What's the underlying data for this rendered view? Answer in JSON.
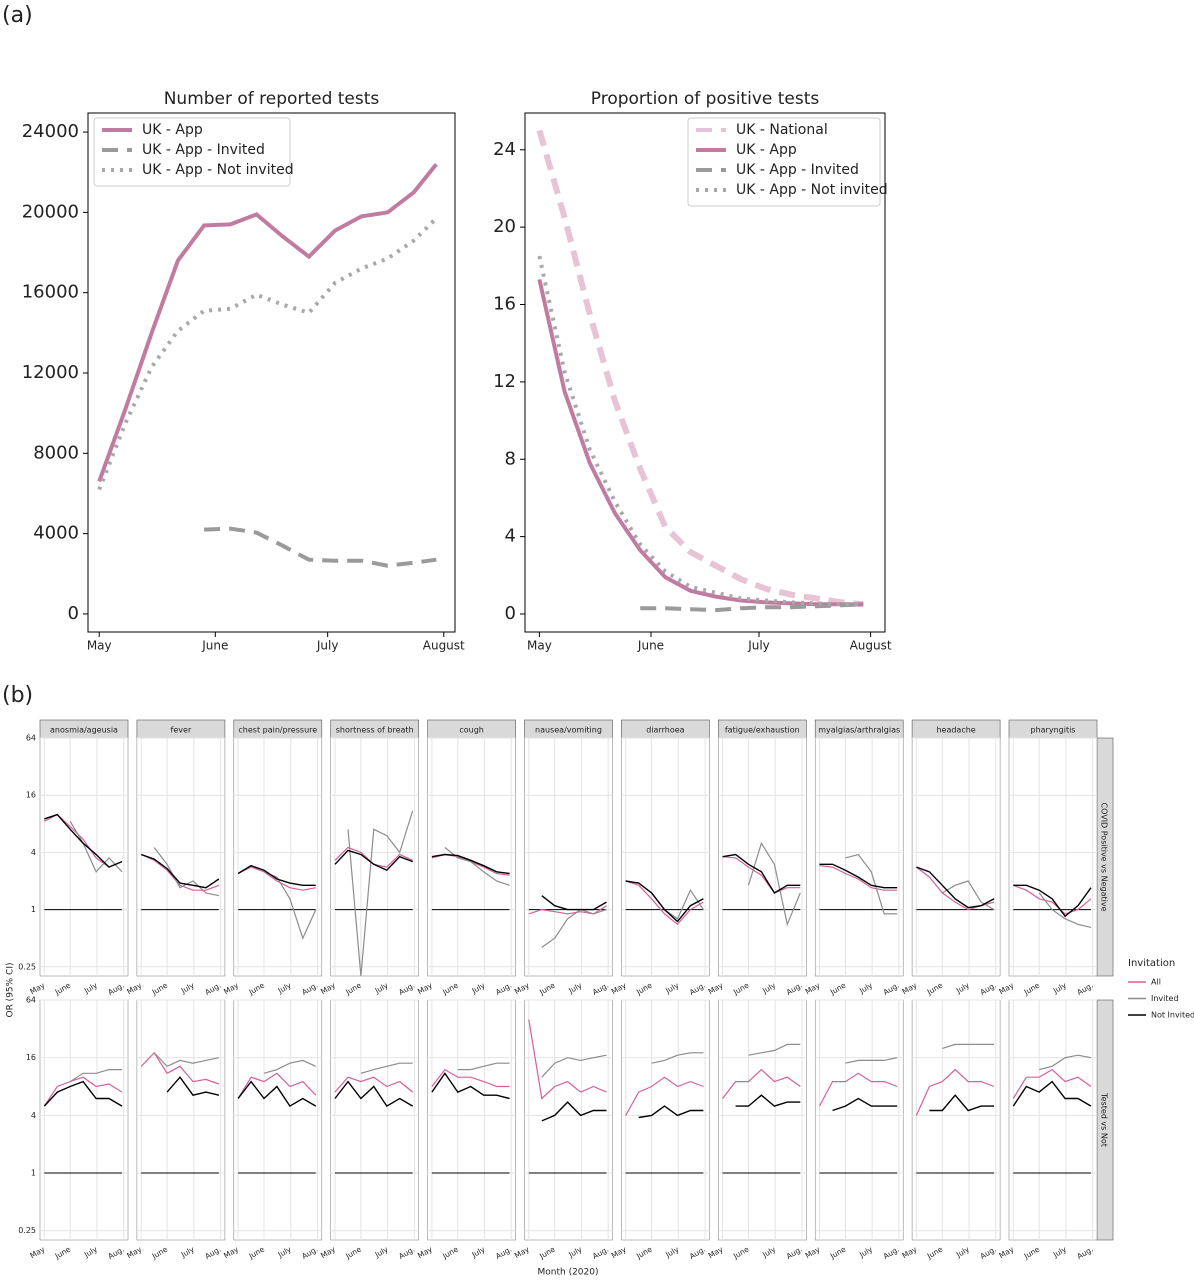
{
  "panel_labels": [
    "(a)",
    "(b)"
  ],
  "chart_data": [
    {
      "type": "line",
      "title": "Number of reported tests",
      "x": [
        0,
        7,
        14,
        21,
        28,
        35,
        42,
        49,
        56,
        63,
        70,
        77,
        84,
        90
      ],
      "xlim": [
        -3,
        95
      ],
      "xticks": [
        {
          "value": 0,
          "label": "May"
        },
        {
          "value": 31,
          "label": "June"
        },
        {
          "value": 61,
          "label": "July"
        },
        {
          "value": 92,
          "label": "August"
        }
      ],
      "ylim": [
        -900,
        24950
      ],
      "yticks": [
        0,
        4000,
        8000,
        12000,
        16000,
        20000,
        24000
      ],
      "legend": "upper left",
      "series": [
        {
          "name": "UK - App",
          "color": "#c27ba0",
          "linestyle": "solid",
          "values": [
            6600,
            10200,
            14000,
            17600,
            19350,
            19400,
            19900,
            18800,
            17800,
            19100,
            19800,
            20000,
            21000,
            22400
          ]
        },
        {
          "name": "UK - App - Invited",
          "color": "#9a9a9a",
          "linestyle": "dashed",
          "values": [
            null,
            null,
            null,
            null,
            4200,
            4250,
            4050,
            3400,
            2700,
            2650,
            2650,
            2400,
            2550,
            2700
          ]
        },
        {
          "name": "UK - App - Not invited",
          "color": "#a8a8a8",
          "linestyle": "dotted",
          "values": [
            6200,
            9500,
            12300,
            14100,
            15100,
            15200,
            15900,
            15400,
            15000,
            16500,
            17200,
            17700,
            18600,
            19700
          ]
        }
      ]
    },
    {
      "type": "line",
      "title": "Proportion of positive tests",
      "x": [
        0,
        7,
        14,
        21,
        28,
        35,
        42,
        49,
        56,
        63,
        70,
        77,
        84,
        90
      ],
      "xlim": [
        -4,
        96
      ],
      "xticks": [
        {
          "value": 0,
          "label": "May"
        },
        {
          "value": 31,
          "label": "June"
        },
        {
          "value": 61,
          "label": "July"
        },
        {
          "value": 92,
          "label": "August"
        }
      ],
      "ylim": [
        -0.93,
        25.9
      ],
      "yticks": [
        0,
        4,
        8,
        12,
        16,
        20,
        24
      ],
      "legend": "upper right",
      "series": [
        {
          "name": "UK - National",
          "color": "#e8c3d5",
          "linestyle": "dashed",
          "values": [
            25,
            20.5,
            15.5,
            11,
            7.5,
            4.5,
            3.2,
            2.5,
            1.8,
            1.3,
            1.0,
            0.8,
            0.6,
            0.5
          ]
        },
        {
          "name": "UK - App",
          "color": "#c27ba0",
          "linestyle": "solid",
          "values": [
            17.3,
            11.5,
            7.8,
            5.2,
            3.3,
            1.9,
            1.2,
            0.9,
            0.7,
            0.6,
            0.55,
            0.5,
            0.5,
            0.5
          ]
        },
        {
          "name": "UK - App - Invited",
          "color": "#9a9a9a",
          "linestyle": "dashed",
          "values": [
            null,
            null,
            null,
            null,
            0.3,
            0.3,
            0.25,
            0.2,
            0.3,
            0.35,
            0.35,
            0.4,
            0.45,
            0.5
          ]
        },
        {
          "name": "UK - App - Not invited",
          "color": "#a8a8a8",
          "linestyle": "dotted",
          "values": [
            18.5,
            12.5,
            8.5,
            5.8,
            3.6,
            2.2,
            1.4,
            1.1,
            0.8,
            0.7,
            0.6,
            0.55,
            0.5,
            0.5
          ]
        }
      ]
    },
    {
      "type": "facets",
      "yscale": "log",
      "ylabel": "OR (95% CI)",
      "xlabel": "Month (2020)",
      "legend_title": "Invitation",
      "x": [
        0,
        15,
        30,
        45,
        60,
        75,
        90
      ],
      "xlim": [
        -5,
        97
      ],
      "xticks": [
        {
          "value": 0,
          "label": "May"
        },
        {
          "value": 30,
          "label": "June"
        },
        {
          "value": 61,
          "label": "July"
        },
        {
          "value": 92,
          "label": "Aug."
        }
      ],
      "ylim": [
        0.2,
        64
      ],
      "yticks": [
        0.25,
        1,
        4,
        16,
        64
      ],
      "reference": 1,
      "grid": true,
      "columns": [
        "anosmia/ageusia",
        "fever",
        "chest pain/pressure",
        "shortness of breath",
        "cough",
        "nausea/vomiting",
        "diarrhoea",
        "fatigue/exhaustion",
        "myalgias/arthralgias",
        "headache",
        "pharyngitis"
      ],
      "rows": [
        "COVID Positive vs Negative",
        "Tested vs Not"
      ],
      "series": [
        {
          "name": "All",
          "color": "#d6609a"
        },
        {
          "name": "Invited",
          "color": "#8c8c8c"
        },
        {
          "name": "Not Invited",
          "color": "#000000"
        }
      ],
      "panels": [
        {
          "values": [
            [
              8.5,
              10,
              7.5,
              5.5,
              3.5,
              2.8,
              3.2
            ],
            [
              null,
              null,
              8.5,
              5,
              2.5,
              3.5,
              2.5
            ],
            [
              9,
              10,
              7,
              5,
              3.8,
              2.8,
              3.2
            ]
          ]
        },
        {
          "values": [
            [
              3.8,
              3.3,
              2.6,
              1.8,
              1.6,
              1.6,
              1.8
            ],
            [
              null,
              4.5,
              3,
              1.7,
              2,
              1.5,
              1.4
            ],
            [
              3.8,
              3.4,
              2.7,
              1.9,
              1.8,
              1.7,
              2.1
            ]
          ]
        },
        {
          "values": [
            [
              2.4,
              2.8,
              2.5,
              2,
              1.7,
              1.6,
              1.7
            ],
            [
              null,
              null,
              2.5,
              2.2,
              1.3,
              0.5,
              1
            ],
            [
              2.4,
              2.9,
              2.6,
              2.1,
              1.9,
              1.8,
              1.8
            ]
          ]
        },
        {
          "values": [
            [
              3.3,
              4.5,
              4,
              3,
              2.8,
              3.8,
              3.3
            ],
            [
              null,
              7,
              0.2,
              7,
              6,
              4,
              11
            ],
            [
              3,
              4.2,
              3.8,
              3,
              2.6,
              3.6,
              3.2
            ]
          ]
        },
        {
          "values": [
            [
              3.5,
              3.8,
              3.6,
              3.2,
              2.8,
              2.4,
              2.3
            ],
            [
              null,
              4.5,
              3.5,
              3.2,
              2.5,
              2,
              1.8
            ],
            [
              3.6,
              3.8,
              3.7,
              3.3,
              2.9,
              2.5,
              2.4
            ]
          ]
        },
        {
          "values": [
            [
              0.9,
              1,
              0.95,
              0.9,
              0.95,
              0.9,
              1.1
            ],
            [
              null,
              0.4,
              0.5,
              0.8,
              1,
              0.9,
              1
            ],
            [
              null,
              1.4,
              1.1,
              1,
              1,
              1,
              1.2
            ]
          ]
        },
        {
          "values": [
            [
              2,
              1.8,
              1.3,
              0.9,
              0.7,
              1,
              1.2
            ],
            [
              null,
              null,
              1.5,
              1,
              0.8,
              1.6,
              1
            ],
            [
              2,
              1.9,
              1.5,
              1,
              0.75,
              1.1,
              1.3
            ]
          ]
        },
        {
          "values": [
            [
              3.6,
              3.5,
              2.8,
              2.3,
              1.5,
              1.7,
              1.7
            ],
            [
              null,
              null,
              1.8,
              5,
              3,
              0.7,
              1.5
            ],
            [
              3.6,
              3.8,
              3,
              2.5,
              1.5,
              1.8,
              1.8
            ]
          ]
        },
        {
          "values": [
            [
              2.9,
              2.8,
              2.4,
              2.1,
              1.7,
              1.6,
              1.6
            ],
            [
              null,
              null,
              3.5,
              3.8,
              2.5,
              0.9,
              0.9
            ],
            [
              3,
              3,
              2.6,
              2.2,
              1.8,
              1.7,
              1.7
            ]
          ]
        },
        {
          "values": [
            [
              2.8,
              2.2,
              1.5,
              1.2,
              1,
              1.1,
              1.2
            ],
            [
              null,
              null,
              1.5,
              1.8,
              2,
              1.2,
              1
            ],
            [
              2.8,
              2.5,
              1.8,
              1.3,
              1.05,
              1.1,
              1.3
            ]
          ]
        },
        {
          "values": [
            [
              1.8,
              1.6,
              1.3,
              1.2,
              0.9,
              1,
              1.3
            ],
            [
              null,
              null,
              1.5,
              1,
              0.8,
              0.7,
              0.65
            ],
            [
              1.8,
              1.8,
              1.6,
              1.3,
              0.85,
              1.1,
              1.7
            ]
          ]
        },
        {
          "values": [
            [
              5,
              8,
              9,
              10,
              8,
              8.5,
              7
            ],
            [
              null,
              null,
              9,
              11,
              11,
              12,
              12
            ],
            [
              5,
              7,
              8,
              9,
              6,
              6,
              5
            ]
          ]
        },
        {
          "values": [
            [
              13,
              18,
              11,
              13,
              9,
              9.5,
              8.5
            ],
            [
              null,
              18,
              13,
              15,
              14,
              15,
              16
            ],
            [
              null,
              null,
              7,
              10,
              6.5,
              7,
              6.5
            ]
          ]
        },
        {
          "values": [
            [
              6,
              10,
              9,
              11,
              8,
              9,
              6.5
            ],
            [
              null,
              null,
              11,
              12,
              14,
              15,
              13
            ],
            [
              6,
              9,
              6,
              8,
              5,
              6,
              5
            ]
          ]
        },
        {
          "values": [
            [
              7,
              10,
              9,
              10,
              8,
              9,
              7
            ],
            [
              null,
              null,
              11,
              12,
              13,
              14,
              14
            ],
            [
              6,
              9,
              6,
              8,
              5,
              6,
              5
            ]
          ]
        },
        {
          "values": [
            [
              8,
              12,
              10,
              10,
              9,
              8,
              8
            ],
            [
              null,
              null,
              12,
              12,
              13,
              14,
              14
            ],
            [
              7,
              11,
              7,
              8,
              6.5,
              6.5,
              6
            ]
          ]
        },
        {
          "values": [
            [
              40,
              6,
              8,
              9,
              7,
              8,
              7
            ],
            [
              null,
              10,
              14,
              16,
              15,
              16,
              17
            ],
            [
              null,
              3.5,
              4,
              5.5,
              4,
              4.5,
              4.5
            ]
          ]
        },
        {
          "values": [
            [
              4,
              7,
              8,
              10,
              8,
              9,
              8
            ],
            [
              null,
              null,
              14,
              15,
              17,
              18,
              18
            ],
            [
              null,
              3.8,
              4,
              5,
              4,
              4.5,
              4.5
            ]
          ]
        },
        {
          "values": [
            [
              6,
              9,
              9,
              12,
              9,
              10,
              8
            ],
            [
              null,
              null,
              17,
              18,
              19,
              22,
              22
            ],
            [
              null,
              5,
              5,
              6.5,
              5,
              5.5,
              5.5
            ]
          ]
        },
        {
          "values": [
            [
              5,
              9,
              9,
              11,
              9,
              9,
              8
            ],
            [
              null,
              null,
              14,
              15,
              15,
              15,
              16
            ],
            [
              null,
              4.5,
              5,
              6,
              5,
              5,
              5
            ]
          ]
        },
        {
          "values": [
            [
              4,
              8,
              9,
              12,
              9,
              9,
              8
            ],
            [
              null,
              null,
              20,
              22,
              22,
              22,
              22
            ],
            [
              null,
              4.5,
              4.5,
              6.5,
              4.5,
              5,
              5
            ]
          ]
        },
        {
          "values": [
            [
              6,
              10,
              10,
              12,
              9,
              10,
              8
            ],
            [
              null,
              null,
              12,
              13,
              16,
              17,
              16
            ],
            [
              5,
              8,
              7,
              9,
              6,
              6,
              5
            ]
          ]
        }
      ]
    }
  ]
}
